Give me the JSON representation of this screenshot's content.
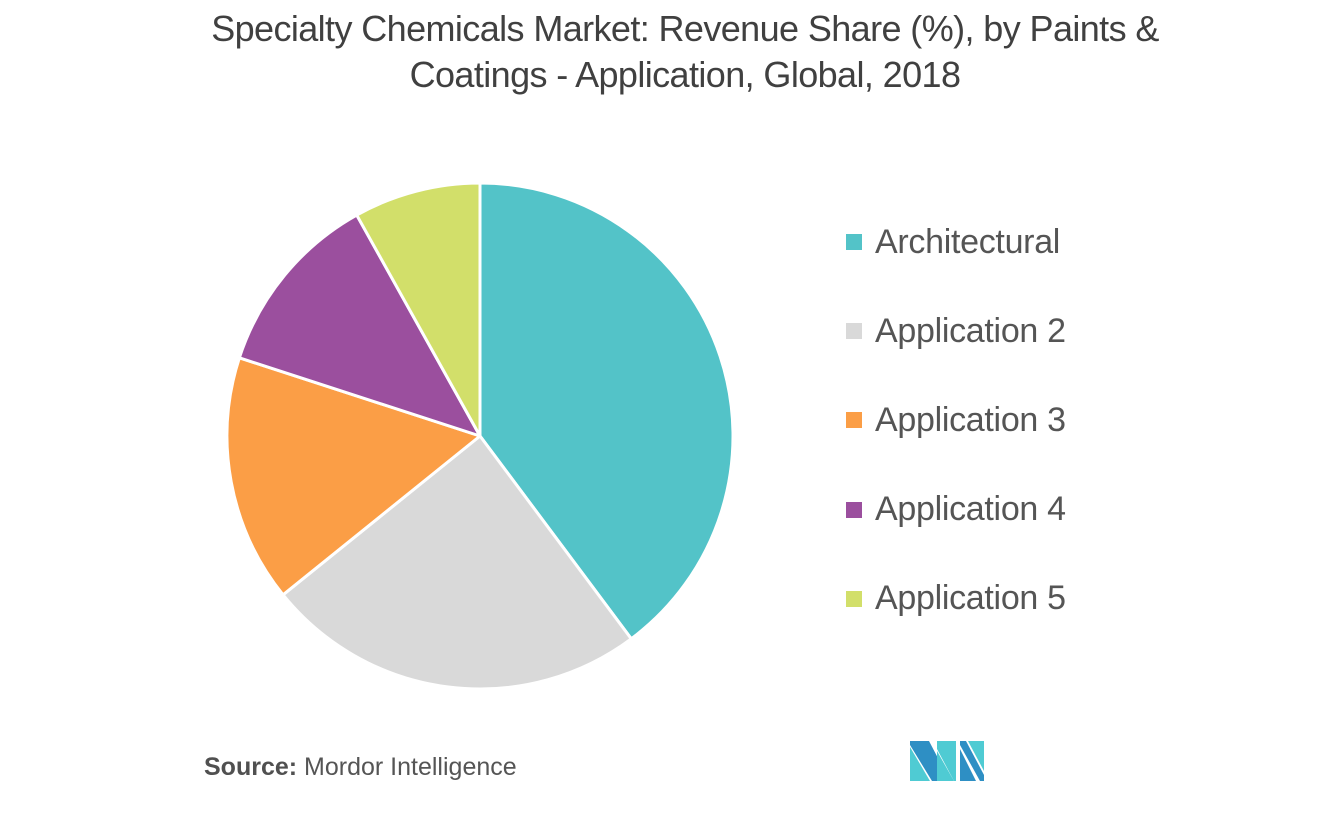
{
  "chart_data": {
    "type": "pie",
    "title": "Specialty Chemicals Market: Revenue Share (%), by Paints & Coatings - Application, Global, 2018",
    "title_lines": [
      "Specialty Chemicals Market: Revenue Share (%), by Paints &",
      "Coatings - Application, Global, 2018"
    ],
    "categories": [
      "Architectural",
      "Application 2",
      "Application 3",
      "Application 4",
      "Application 5"
    ],
    "values": [
      39.8,
      24.4,
      15.8,
      11.9,
      8.1
    ],
    "colors": [
      "#53c3c8",
      "#d9d9d9",
      "#fb9e46",
      "#9b4f9e",
      "#d2df6a"
    ],
    "start_angle_deg": 0,
    "direction": "clockwise",
    "data_labels_shown": false,
    "legend_position": "right",
    "xlabel": "",
    "ylabel": ""
  },
  "legend": {
    "items": [
      {
        "label": "Architectural",
        "color": "#53c3c8"
      },
      {
        "label": "Application 2",
        "color": "#d9d9d9"
      },
      {
        "label": "Application 3",
        "color": "#fb9e46"
      },
      {
        "label": "Application 4",
        "color": "#9b4f9e"
      },
      {
        "label": "Application 5",
        "color": "#d2df6a"
      }
    ]
  },
  "footer": {
    "source_label": "Source:",
    "source_value": " Mordor Intelligence"
  },
  "logo": {
    "name": "mordor-intelligence-logo",
    "colors": [
      "#2e8fc4",
      "#4fcbd3"
    ]
  }
}
